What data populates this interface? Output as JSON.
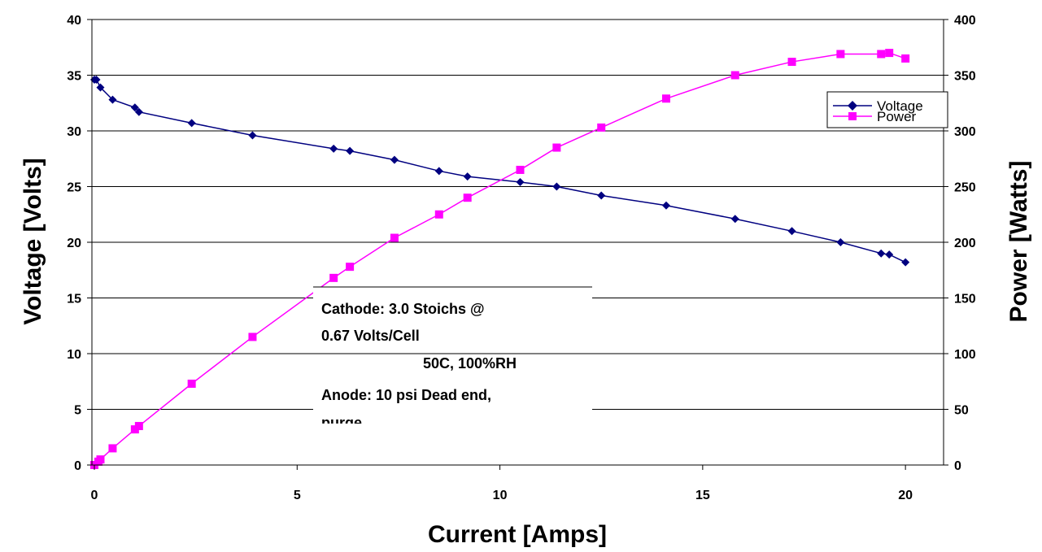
{
  "chart_data": {
    "type": "line",
    "title": "",
    "xlabel": "Current [Amps]",
    "ylabel": "Voltage [Volts]",
    "y2label": "Power [Watts]",
    "xlim": [
      0,
      21
    ],
    "ylim": [
      0,
      40
    ],
    "y2lim": [
      0,
      400
    ],
    "xticks": [
      0,
      5,
      10,
      15,
      20
    ],
    "yticks": [
      0,
      5,
      10,
      15,
      20,
      25,
      30,
      35,
      40
    ],
    "y2ticks": [
      0,
      50,
      100,
      150,
      200,
      250,
      300,
      350,
      400
    ],
    "grid": "horizontal",
    "legend_position": "top-right",
    "series": [
      {
        "name": "Voltage",
        "axis": "left",
        "color": "#000080",
        "marker": "diamond",
        "x": [
          0.0,
          0.05,
          0.15,
          0.45,
          1.0,
          1.1,
          2.4,
          3.9,
          5.9,
          6.3,
          7.4,
          8.5,
          9.2,
          10.5,
          11.4,
          12.5,
          14.1,
          15.8,
          17.2,
          18.4,
          19.4,
          19.6,
          20.0
        ],
        "values": [
          34.6,
          34.6,
          33.9,
          32.8,
          32.1,
          31.7,
          30.7,
          29.6,
          28.4,
          28.2,
          27.4,
          26.4,
          25.9,
          25.4,
          25.0,
          24.2,
          23.3,
          22.1,
          21.0,
          20.0,
          19.0,
          18.9,
          18.2
        ]
      },
      {
        "name": "Power",
        "axis": "right",
        "color": "#FF00FF",
        "marker": "square",
        "x": [
          0.0,
          0.1,
          0.15,
          0.45,
          1.0,
          1.1,
          2.4,
          3.9,
          5.9,
          6.3,
          7.4,
          8.5,
          9.2,
          10.5,
          11.4,
          12.5,
          14.1,
          15.8,
          17.2,
          18.4,
          19.4,
          19.6,
          20.0
        ],
        "values": [
          0,
          3,
          5,
          15,
          32,
          35,
          73,
          115,
          168,
          178,
          204,
          225,
          240,
          265,
          285,
          303,
          329,
          350,
          362,
          369,
          369,
          370,
          365
        ]
      }
    ],
    "annotation": {
      "lines": [
        "Cathode: 3.0 Stoichs @",
        "0.67 Volts/Cell",
        "50C, 100%RH",
        "Anode: 10 psi Dead end,",
        "purge"
      ]
    }
  }
}
